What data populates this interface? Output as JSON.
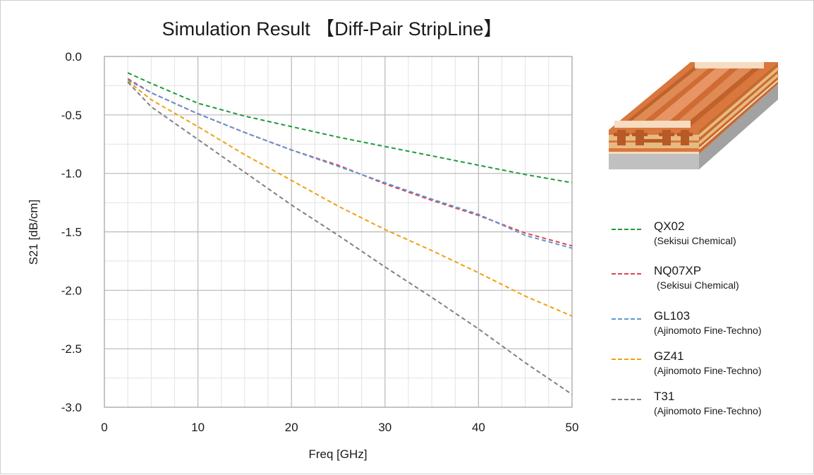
{
  "chart_data": {
    "type": "line",
    "title": "Simulation Result 【Diff-Pair StripLine】",
    "xlabel": "Freq [GHz]",
    "ylabel": "S21 [dB/cm]",
    "xlim": [
      0,
      50
    ],
    "ylim": [
      -3.0,
      0.0
    ],
    "x_ticks": [
      "0",
      "10",
      "20",
      "30",
      "40",
      "50"
    ],
    "y_ticks": [
      "0.0",
      "-0.5",
      "-1.0",
      "-1.5",
      "-2.0",
      "-2.5",
      "-3.0"
    ],
    "grid": true,
    "legend_position": "right",
    "series": [
      {
        "name": "QX02",
        "subtitle": "(Sekisui Chemical)",
        "color": "#1e9a3c",
        "x": [
          2.5,
          5,
          10,
          15,
          20,
          25,
          30,
          35,
          40,
          45,
          50
        ],
        "y": [
          -0.14,
          -0.23,
          -0.4,
          -0.51,
          -0.6,
          -0.69,
          -0.77,
          -0.85,
          -0.93,
          -1.01,
          -1.08
        ]
      },
      {
        "name": "NQ07XP",
        "subtitle": "(Sekisui Chemical)",
        "color": "#e0434f",
        "x": [
          2.5,
          5,
          10,
          15,
          20,
          25,
          30,
          35,
          40,
          45,
          50
        ],
        "y": [
          -0.19,
          -0.31,
          -0.49,
          -0.65,
          -0.8,
          -0.93,
          -1.09,
          -1.23,
          -1.36,
          -1.51,
          -1.62
        ]
      },
      {
        "name": "GL103",
        "subtitle": "(Ajinomoto Fine-Techno)",
        "color": "#5a9ad6",
        "x": [
          2.5,
          5,
          10,
          15,
          20,
          25,
          30,
          35,
          40,
          45,
          50
        ],
        "y": [
          -0.2,
          -0.31,
          -0.49,
          -0.65,
          -0.8,
          -0.94,
          -1.08,
          -1.22,
          -1.35,
          -1.53,
          -1.64
        ]
      },
      {
        "name": "GZ41",
        "subtitle": "(Ajinomoto Fine-Techno)",
        "color": "#f0a010",
        "x": [
          2.5,
          5,
          10,
          15,
          20,
          25,
          30,
          35,
          40,
          45,
          50
        ],
        "y": [
          -0.21,
          -0.37,
          -0.6,
          -0.84,
          -1.06,
          -1.28,
          -1.48,
          -1.66,
          -1.85,
          -2.05,
          -2.22
        ]
      },
      {
        "name": "T31",
        "subtitle": "(Ajinomoto Fine-Techno)",
        "color": "#808080",
        "x": [
          2.5,
          5,
          10,
          15,
          20,
          25,
          30,
          35,
          40,
          45,
          50
        ],
        "y": [
          -0.22,
          -0.43,
          -0.71,
          -0.99,
          -1.27,
          -1.53,
          -1.8,
          -2.06,
          -2.33,
          -2.62,
          -2.89
        ]
      }
    ]
  },
  "illustration": {
    "icon": "pcb-stripline-cross-section-icon",
    "colors": {
      "copper": "#d9773e",
      "copper_dark": "#b85a25",
      "copper_light": "#e89565",
      "laminate": "#e6bb82",
      "pad_light": "#f6dcc0",
      "base_top": "#d2d2d2",
      "base_side": "#a2a2a2",
      "base_front": "#c0c0c0"
    }
  }
}
